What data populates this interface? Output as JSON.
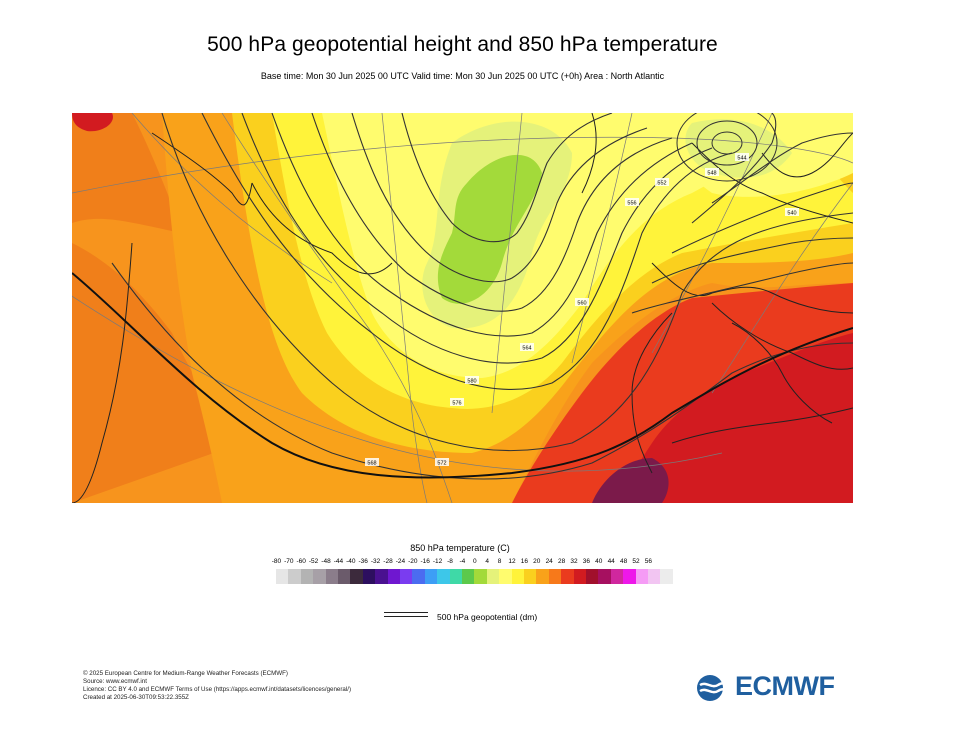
{
  "title": "500 hPa geopotential height and 850 hPa temperature",
  "subtitle": "Base time: Mon 30 Jun 2025 00 UTC Valid time: Mon 30 Jun 2025 00 UTC (+0h) Area : North Atlantic",
  "map": {
    "region": "North Atlantic",
    "contour_labels": [
      "580",
      "576",
      "572",
      "568",
      "564",
      "560",
      "556",
      "552",
      "548",
      "544",
      "540"
    ]
  },
  "legend": {
    "title": "850 hPa temperature (C)",
    "ticks": [
      "-80",
      "-70",
      "-60",
      "-52",
      "-48",
      "-44",
      "-40",
      "-36",
      "-32",
      "-28",
      "-24",
      "-20",
      "-16",
      "-12",
      "-8",
      "-4",
      "0",
      "4",
      "8",
      "12",
      "16",
      "20",
      "24",
      "28",
      "32",
      "36",
      "40",
      "44",
      "48",
      "52",
      "56"
    ],
    "colors": [
      "#e6e6e6",
      "#cccccc",
      "#b3b3b3",
      "#a7a0a7",
      "#8b7d8b",
      "#6b5b6b",
      "#3c2a3c",
      "#2d0f5f",
      "#4a1190",
      "#6f17d0",
      "#7a3cf0",
      "#4b6cf0",
      "#3d9ef5",
      "#3dc7e9",
      "#3fd9a7",
      "#5cc94b",
      "#a3da3a",
      "#e5f27a",
      "#fffc6e",
      "#fff33a",
      "#fad01e",
      "#f9a21a",
      "#f7791a",
      "#ea3b1e",
      "#d21b20",
      "#a1102c",
      "#a61060",
      "#d0279e",
      "#ee17ea",
      "#f59bf5",
      "#f2c5f2",
      "#ececec"
    ],
    "geopotential_label": "500 hPa geopotential (dm)"
  },
  "footer": {
    "line1": "© 2025 European Centre for Medium-Range Weather Forecasts (ECMWF)",
    "line2": "Source: www.ecmwf.int",
    "line3": "Licence: CC BY 4.0 and ECMWF Terms of Use (https://apps.ecmwf.int/datasets/licences/general/)",
    "line4": "Created at 2025-06-30T09:53:22.355Z"
  },
  "logo": {
    "text": "ECMWF",
    "color": "#1f5f9f"
  }
}
